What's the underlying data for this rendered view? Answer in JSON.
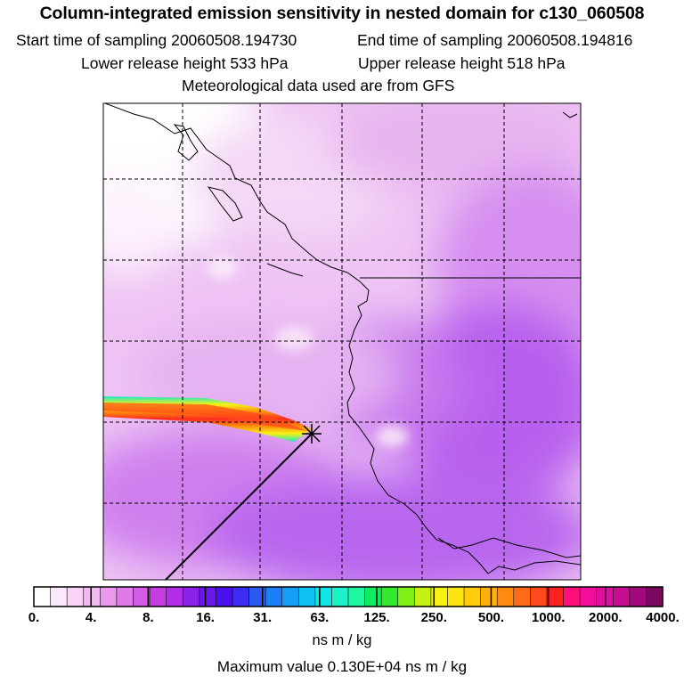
{
  "header": {
    "title": "Column-integrated emission sensitivity in nested domain for c130_060508",
    "start_label": "Start time of sampling 20060508.194730",
    "end_label": "End time of sampling 20060508.194816",
    "lower_label": "Lower release height  533 hPa",
    "upper_label": "Upper release height  518 hPa",
    "met_label": "Meteorological data used are from GFS"
  },
  "colorbar": {
    "tick_labels": [
      "0.",
      "4.",
      "8.",
      "16.",
      "31.",
      "63.",
      "125.",
      "250.",
      "500.",
      "1000.",
      "2000.",
      "4000."
    ],
    "unit": "ns m / kg",
    "colors": [
      "#ffffff",
      "#fce8fc",
      "#f8d4f8",
      "#f2b8f2",
      "#ea9aee",
      "#e07ae8",
      "#d45ce4",
      "#c63ee0",
      "#b22ee6",
      "#8a22e8",
      "#6a16ea",
      "#4a10ee",
      "#3a2cf0",
      "#2c58f4",
      "#1c7ef8",
      "#149ef8",
      "#0ec2f2",
      "#10e6e8",
      "#1cf2c8",
      "#1ef6a0",
      "#10ec60",
      "#34e82c",
      "#7ef018",
      "#c4f214",
      "#f6f214",
      "#fde412",
      "#ffcc10",
      "#ffb00e",
      "#ff8a0c",
      "#ff6a18",
      "#ff4a1c",
      "#ff2020",
      "#ff107a",
      "#f40c9a",
      "#e00e9e",
      "#c60c90",
      "#a20a7c",
      "#7a085e"
    ]
  },
  "footer": {
    "max_value_label": "Maximum value  0.130E+04 ns m / kg"
  }
}
